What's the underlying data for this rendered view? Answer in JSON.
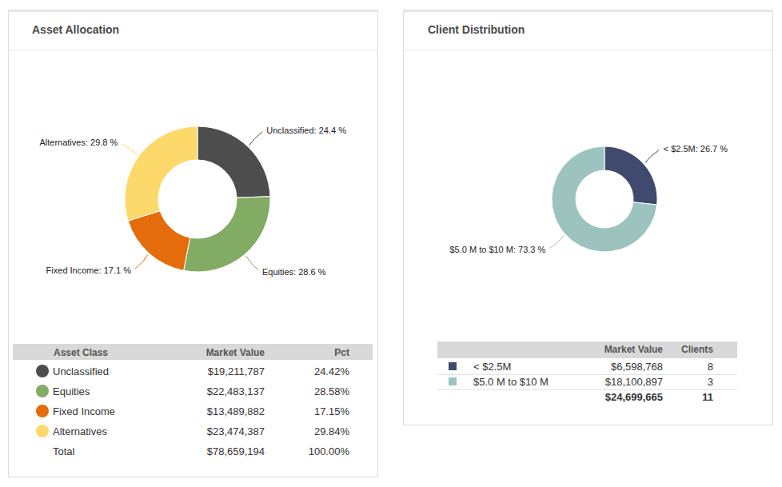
{
  "chart_data": [
    {
      "type": "donut",
      "title": "Asset Allocation",
      "categories": [
        "Unclassified",
        "Equities",
        "Fixed Income",
        "Alternatives"
      ],
      "values": [
        24.4,
        28.6,
        17.1,
        29.8
      ],
      "value_labels": [
        "Unclassified: 24.4 %",
        "Equities: 28.6 %",
        "Fixed Income: 17.1 %",
        "Alternatives: 29.8 %"
      ],
      "colors": [
        "#4d4d4d",
        "#82ac63",
        "#e46c0a",
        "#fdd96b"
      ],
      "data_labels": true
    },
    {
      "type": "donut",
      "title": "Client Distribution",
      "categories": [
        "< $2.5M",
        "$5.0 M to $10 M"
      ],
      "values": [
        26.7,
        73.3
      ],
      "value_labels": [
        "< $2.5M: 26.7 %",
        "$5.0 M to $10 M: 73.3 %"
      ],
      "colors": [
        "#3f4a6e",
        "#9cc3bd"
      ],
      "data_labels": true
    }
  ],
  "tables": [
    {
      "label_column": "Asset Class",
      "columns": [
        "Market Value",
        "Pct"
      ],
      "rows": [
        [
          "$19,211,787",
          "24.42%"
        ],
        [
          "$22,483,137",
          "28.58%"
        ],
        [
          "$13,489,882",
          "17.15%"
        ],
        [
          "$23,474,387",
          "29.84%"
        ]
      ],
      "total": {
        "label": "Total",
        "cells": [
          "$78,659,194",
          "100.00%"
        ]
      }
    },
    {
      "columns": [
        "Market Value",
        "Clients"
      ],
      "rows": [
        [
          "$6,598,768",
          "8"
        ],
        [
          "$18,100,897",
          "3"
        ]
      ],
      "total": {
        "cells": [
          "$24,699,665",
          "11"
        ]
      }
    }
  ]
}
